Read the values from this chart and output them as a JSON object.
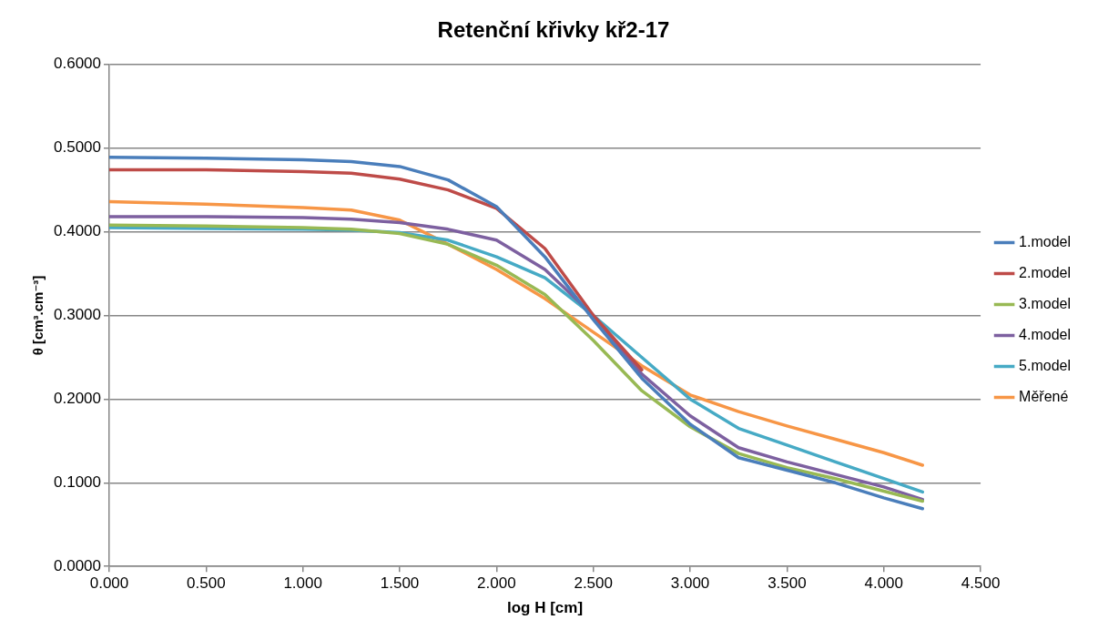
{
  "chart_data": {
    "type": "line",
    "title": "Retenční křivky kř2-17",
    "xlabel": "log H [cm]",
    "ylabel": "θ [cm³.cm⁻³]",
    "x": [
      0,
      0.5,
      1.0,
      1.25,
      1.5,
      1.75,
      2.0,
      2.25,
      2.5,
      2.75,
      3.0,
      3.25,
      3.5,
      3.75,
      4.0,
      4.2
    ],
    "series": [
      {
        "name": "1.model",
        "color": "#4a7ebb",
        "values": [
          0.489,
          0.488,
          0.486,
          0.484,
          0.478,
          0.462,
          0.43,
          0.37,
          0.295,
          0.225,
          0.17,
          0.13,
          0.115,
          0.1,
          0.082,
          0.069
        ]
      },
      {
        "name": "2.model",
        "color": "#be4b48",
        "values": [
          0.474,
          0.474,
          0.472,
          0.47,
          0.463,
          0.45,
          0.428,
          0.38,
          0.3,
          0.235,
          null,
          null,
          null,
          null,
          null,
          null
        ]
      },
      {
        "name": "3.model",
        "color": "#98b954",
        "values": [
          0.408,
          0.407,
          0.405,
          0.403,
          0.398,
          0.385,
          0.36,
          0.325,
          0.27,
          0.21,
          0.167,
          0.135,
          0.118,
          0.105,
          0.09,
          0.078
        ]
      },
      {
        "name": "4.model",
        "color": "#7d60a0",
        "values": [
          0.418,
          0.418,
          0.417,
          0.415,
          0.411,
          0.403,
          0.39,
          0.355,
          0.3,
          0.23,
          0.18,
          0.142,
          0.125,
          0.11,
          0.095,
          0.08
        ]
      },
      {
        "name": "5.model",
        "color": "#46aac5",
        "values": [
          0.405,
          0.404,
          0.403,
          0.402,
          0.399,
          0.39,
          0.37,
          0.345,
          0.3,
          0.25,
          0.2,
          0.165,
          0.145,
          0.125,
          0.105,
          0.089
        ]
      },
      {
        "name": "Měřené",
        "color": "#f79646",
        "values": [
          0.436,
          0.433,
          0.429,
          0.426,
          0.414,
          0.385,
          0.355,
          0.32,
          0.28,
          0.24,
          0.205,
          0.185,
          0.168,
          0.152,
          0.136,
          0.121
        ]
      }
    ],
    "xlim": [
      0,
      4.5
    ],
    "xticks": [
      {
        "value": 0,
        "label": "0.000"
      },
      {
        "value": 0.5,
        "label": "0.500"
      },
      {
        "value": 1,
        "label": "1.000"
      },
      {
        "value": 1.5,
        "label": "1.500"
      },
      {
        "value": 2,
        "label": "2.000"
      },
      {
        "value": 2.5,
        "label": "2.500"
      },
      {
        "value": 3,
        "label": "3.000"
      },
      {
        "value": 3.5,
        "label": "3.500"
      },
      {
        "value": 4,
        "label": "4.000"
      },
      {
        "value": 4.5,
        "label": "4.500"
      }
    ],
    "ylim": [
      0,
      0.6
    ],
    "yticks": [
      {
        "value": 0,
        "label": "0.0000"
      },
      {
        "value": 0.1,
        "label": "0.1000"
      },
      {
        "value": 0.2,
        "label": "0.2000"
      },
      {
        "value": 0.3,
        "label": "0.3000"
      },
      {
        "value": 0.4,
        "label": "0.4000"
      },
      {
        "value": 0.5,
        "label": "0.5000"
      },
      {
        "value": 0.6,
        "label": "0.6000"
      }
    ],
    "grid": "y",
    "legend": "right",
    "marker": "none",
    "line_style": "solid"
  }
}
